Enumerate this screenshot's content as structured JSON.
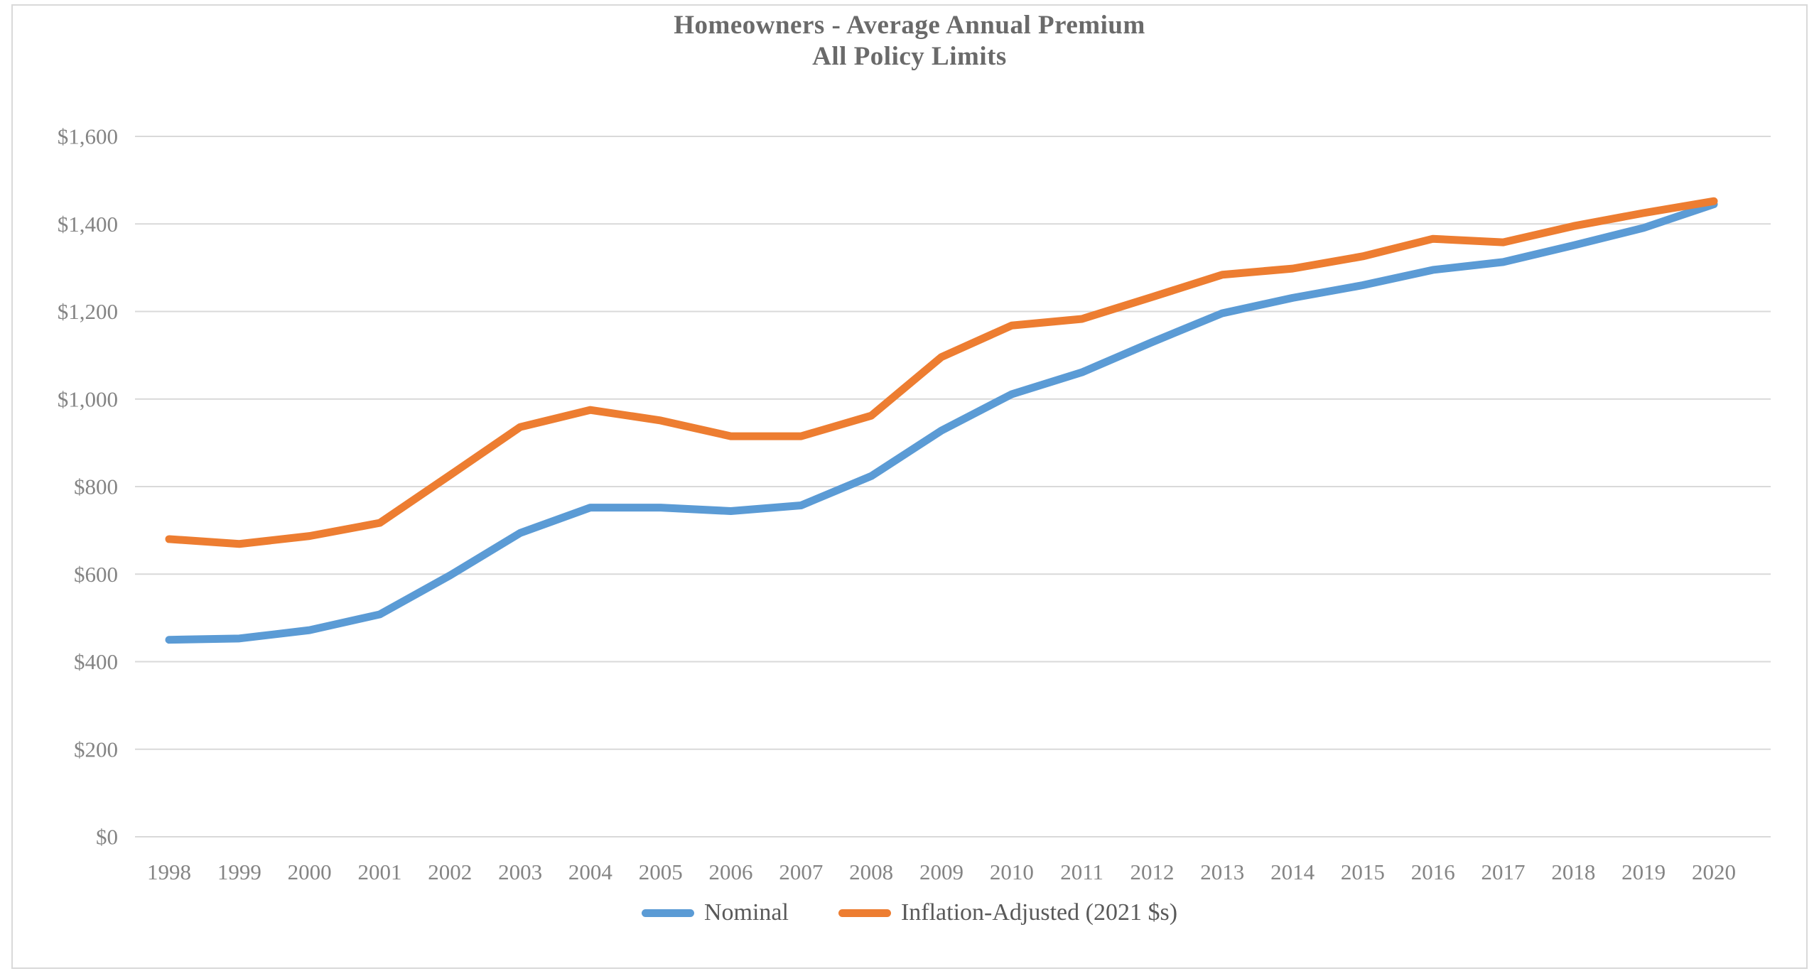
{
  "title": {
    "line1": "Homeowners - Average Annual Premium",
    "line2": "All Policy Limits"
  },
  "legend": {
    "items": [
      {
        "label": "Nominal",
        "color": "#5B9BD5"
      },
      {
        "label": "Inflation-Adjusted (2021 $s)",
        "color": "#ED7D31"
      }
    ]
  },
  "colors": {
    "nominal_line": "#5B9BD5",
    "inflation_adjusted_line": "#ED7D31",
    "gridline": "#d9d9d9",
    "axis_text": "#848484",
    "title_text": "#6a6a6a",
    "frame_border": "#d9d9d9"
  },
  "chart_data": {
    "type": "line",
    "title": "Homeowners - Average Annual Premium",
    "subtitle": "All Policy Limits",
    "x_label": "",
    "y_label": "",
    "y_tick_format": "$#,##0",
    "y_ticks": [
      0,
      200,
      400,
      600,
      800,
      1000,
      1200,
      1400,
      1600
    ],
    "ylim": [
      0,
      1600
    ],
    "grid": "horizontal",
    "legend_position": "bottom",
    "categories": [
      1998,
      1999,
      2000,
      2001,
      2002,
      2003,
      2004,
      2005,
      2006,
      2007,
      2008,
      2009,
      2010,
      2011,
      2012,
      2013,
      2014,
      2015,
      2016,
      2017,
      2018,
      2019,
      2020
    ],
    "series": [
      {
        "name": "Nominal",
        "color": "#5B9BD5",
        "values": [
          450,
          453,
          472,
          508,
          597,
          694,
          752,
          752,
          744,
          757,
          824,
          928,
          1011,
          1061,
          1130,
          1196,
          1231,
          1260,
          1295,
          1313,
          1351,
          1391,
          1445
        ]
      },
      {
        "name": "Inflation-Adjusted (2021 $s)",
        "color": "#ED7D31",
        "values": [
          680,
          669,
          687,
          717,
          826,
          936,
          975,
          951,
          915,
          915,
          962,
          1096,
          1168,
          1183,
          1233,
          1284,
          1298,
          1326,
          1366,
          1358,
          1395,
          1425,
          1452
        ]
      }
    ]
  }
}
